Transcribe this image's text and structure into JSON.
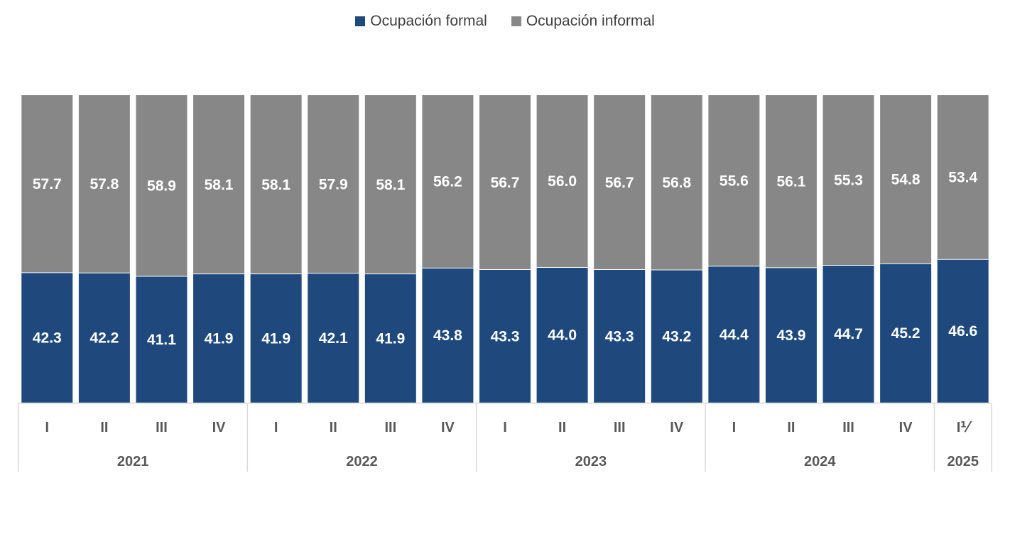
{
  "chart_data": {
    "type": "bar",
    "stacked": true,
    "percent_stacked": true,
    "categories": [
      "I",
      "II",
      "III",
      "IV",
      "I",
      "II",
      "III",
      "IV",
      "I",
      "II",
      "III",
      "IV",
      "I",
      "II",
      "III",
      "IV",
      "I⅟"
    ],
    "groups": [
      {
        "label": "2021",
        "count": 4
      },
      {
        "label": "2022",
        "count": 4
      },
      {
        "label": "2023",
        "count": 4
      },
      {
        "label": "2024",
        "count": 4
      },
      {
        "label": "2025",
        "count": 1
      }
    ],
    "series": [
      {
        "name": "Ocupación formal",
        "color": "#1f497d",
        "values": [
          42.3,
          42.2,
          41.1,
          41.9,
          41.9,
          42.1,
          41.9,
          43.8,
          43.3,
          44.0,
          43.3,
          43.2,
          44.4,
          43.9,
          44.7,
          45.2,
          46.6
        ],
        "labels": [
          "42.3",
          "42.2",
          "41.1",
          "41.9",
          "41.9",
          "42.1",
          "41.9",
          "43.8",
          "43.3",
          "44.0",
          "43.3",
          "43.2",
          "44.4",
          "43.9",
          "44.7",
          "45.2",
          "46.6"
        ]
      },
      {
        "name": "Ocupación informal",
        "color": "#878787",
        "values": [
          57.7,
          57.8,
          58.9,
          58.1,
          58.1,
          57.9,
          58.1,
          56.2,
          56.7,
          56.0,
          56.7,
          56.8,
          55.6,
          56.1,
          55.3,
          54.8,
          53.4
        ],
        "labels": [
          "57.7",
          "57.8",
          "58.9",
          "58.1",
          "58.1",
          "57.9",
          "58.1",
          "56.2",
          "56.7",
          "56.0",
          "56.7",
          "56.8",
          "55.6",
          "56.1",
          "55.3",
          "54.8",
          "53.4"
        ]
      }
    ],
    "ylim": [
      0,
      100
    ],
    "grid": false,
    "legend_position": "top"
  }
}
